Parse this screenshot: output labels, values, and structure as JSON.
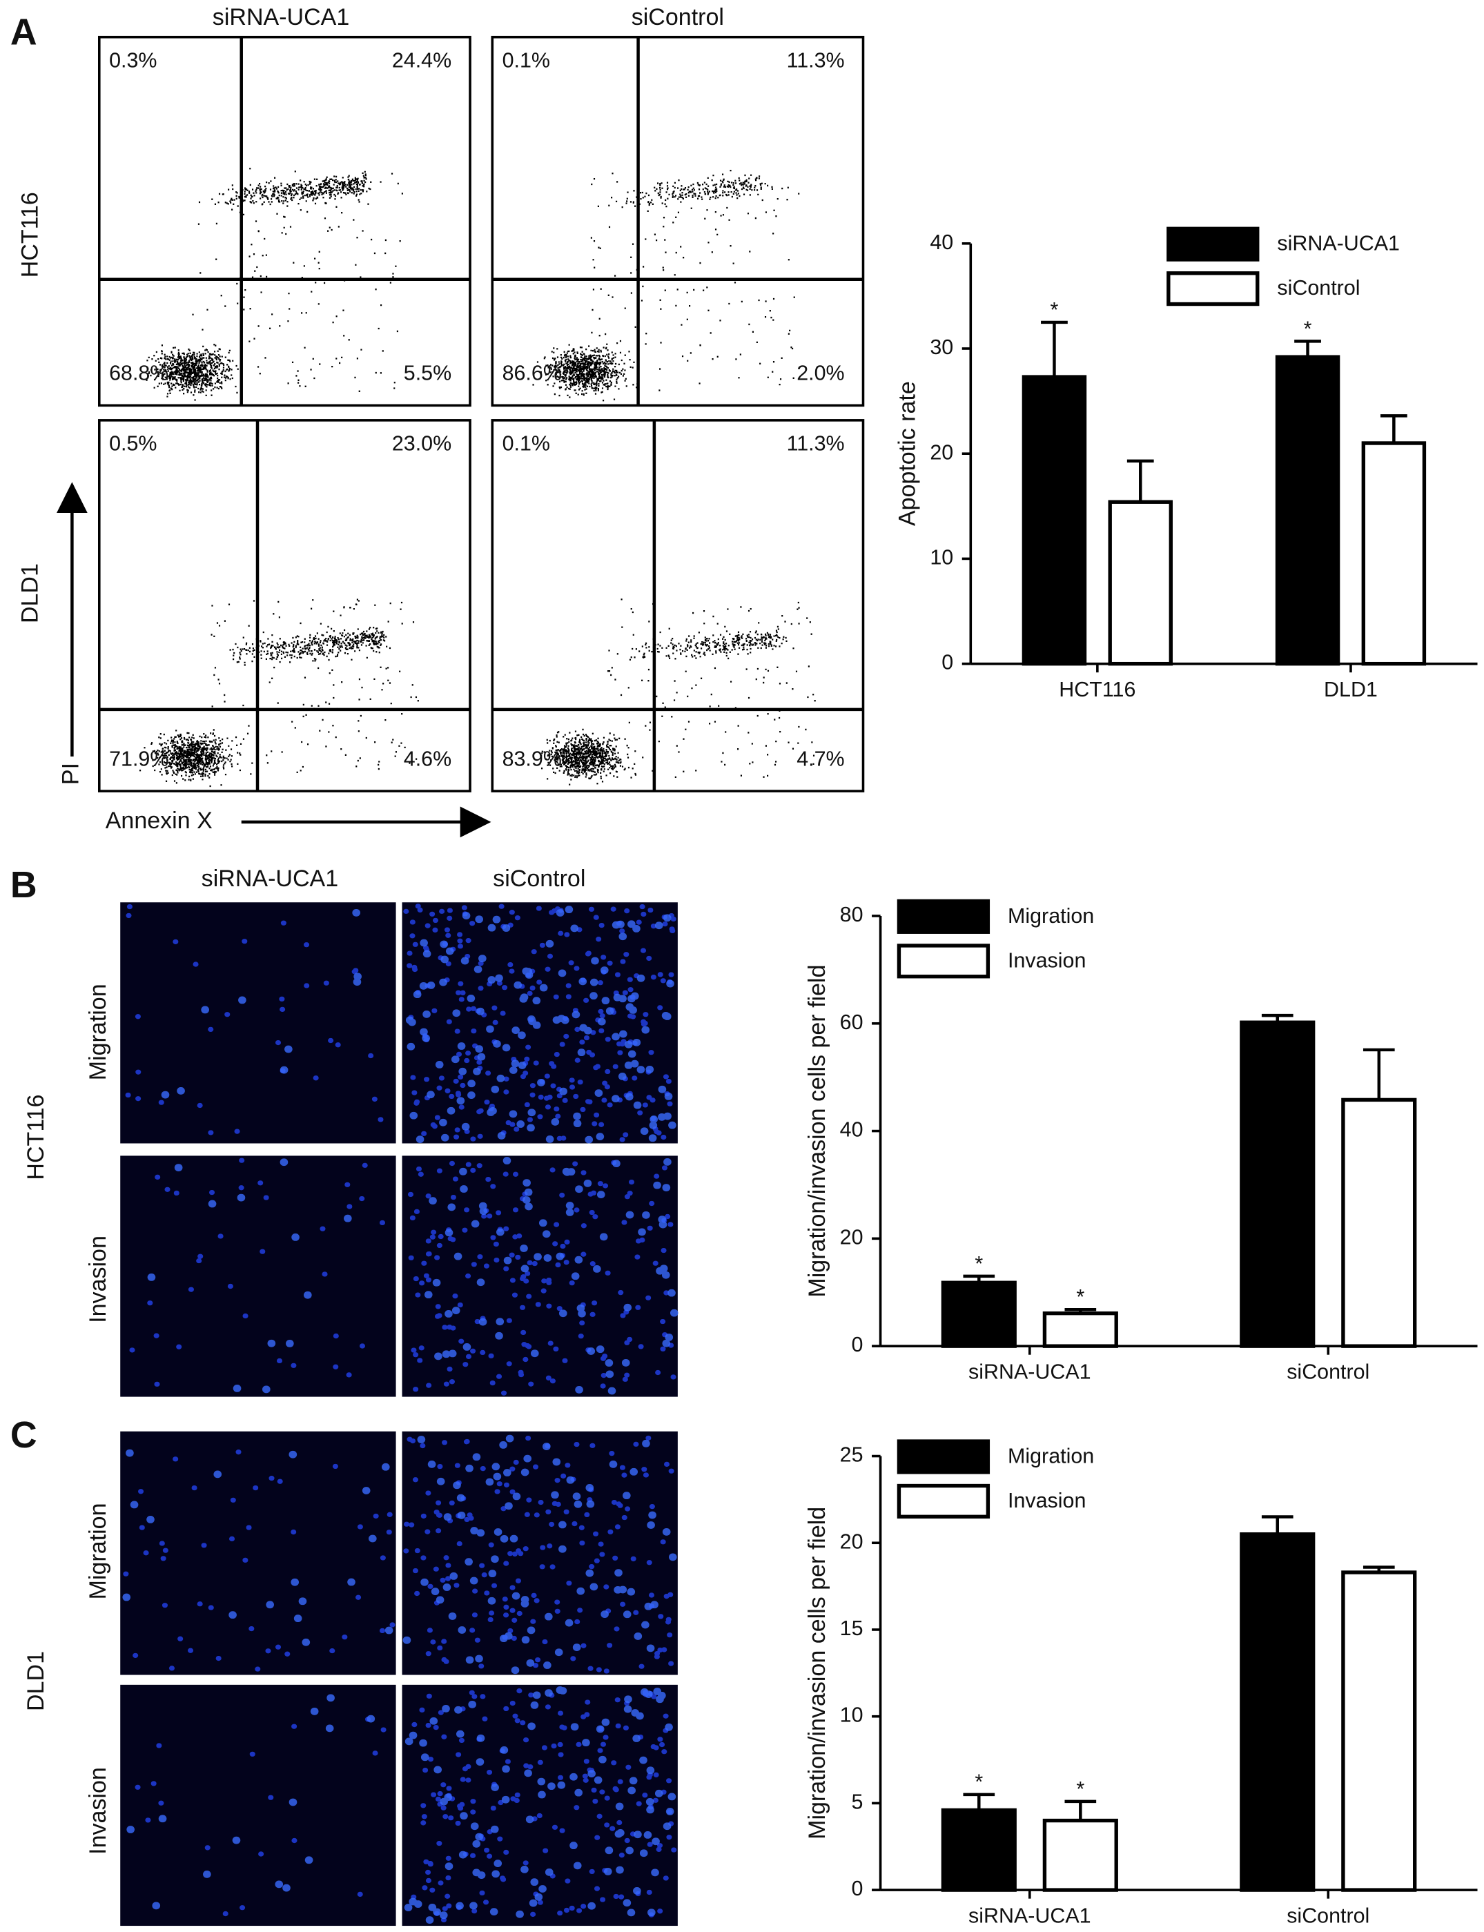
{
  "panels": {
    "A": {
      "label": "A",
      "columns": [
        "siRNA-UCA1",
        "siControl"
      ],
      "rows": [
        "HCT116",
        "DLD1"
      ],
      "y_axis_label": "PI",
      "x_axis_label": "Annexin X",
      "quadrants": [
        [
          [
            "0.3%",
            "24.4%",
            "68.8%",
            "5.5%"
          ],
          [
            "0.1%",
            "11.3%",
            "86.6%",
            "2.0%"
          ]
        ],
        [
          [
            "0.5%",
            "23.0%",
            "71.9%",
            "4.6%"
          ],
          [
            "0.1%",
            "11.3%",
            "83.9%",
            "4.7%"
          ]
        ]
      ]
    },
    "B": {
      "label": "B",
      "columns": [
        "siRNA-UCA1",
        "siControl"
      ],
      "row_label": "HCT116",
      "image_rows": [
        "Migration",
        "Invasion"
      ]
    },
    "C": {
      "label": "C",
      "row_label": "DLD1",
      "image_rows": [
        "Migration",
        "Invasion"
      ]
    }
  },
  "chart_data": [
    {
      "type": "bar",
      "y_label": "Apoptotic rate",
      "categories": [
        "HCT116",
        "DLD1"
      ],
      "series": [
        {
          "name": "siRNA-UCA1",
          "color": "#000000",
          "values": [
            27.3,
            29.2
          ],
          "errors": [
            5.2,
            1.5
          ],
          "markers": [
            "*",
            "*"
          ]
        },
        {
          "name": "siControl",
          "color": "#ffffff",
          "values": [
            15.4,
            21.0
          ],
          "errors": [
            3.9,
            2.6
          ]
        }
      ],
      "ylim": [
        0,
        40
      ],
      "yticks": [
        0,
        10,
        20,
        30,
        40
      ],
      "legend": "top-right"
    },
    {
      "type": "bar",
      "y_label": "Migration/invasion cells per field",
      "categories": [
        "siRNA-UCA1",
        "siControl"
      ],
      "series": [
        {
          "name": "Migration",
          "color": "#000000",
          "values": [
            11.8,
            60.2
          ],
          "errors": [
            1.2,
            1.3
          ],
          "markers": [
            "*",
            null
          ]
        },
        {
          "name": "Invasion",
          "color": "#ffffff",
          "values": [
            6.1,
            45.8
          ],
          "errors": [
            0.7,
            9.3
          ],
          "markers": [
            "*",
            null
          ]
        }
      ],
      "ylim": [
        0,
        80
      ],
      "yticks": [
        0,
        20,
        40,
        60,
        80
      ],
      "legend": "top-left"
    },
    {
      "type": "bar",
      "y_label": "Migration/invasion cells per field",
      "categories": [
        "siRNA-UCA1",
        "siControl"
      ],
      "series": [
        {
          "name": "Migration",
          "color": "#000000",
          "values": [
            4.6,
            20.5
          ],
          "errors": [
            0.9,
            1.0
          ],
          "markers": [
            "*",
            null
          ]
        },
        {
          "name": "Invasion",
          "color": "#ffffff",
          "values": [
            4.0,
            18.3
          ],
          "errors": [
            1.1,
            0.3
          ],
          "markers": [
            "*",
            null
          ]
        }
      ],
      "ylim": [
        0,
        25
      ],
      "yticks": [
        0,
        5,
        10,
        15,
        20,
        25
      ],
      "legend": "top-left"
    }
  ]
}
